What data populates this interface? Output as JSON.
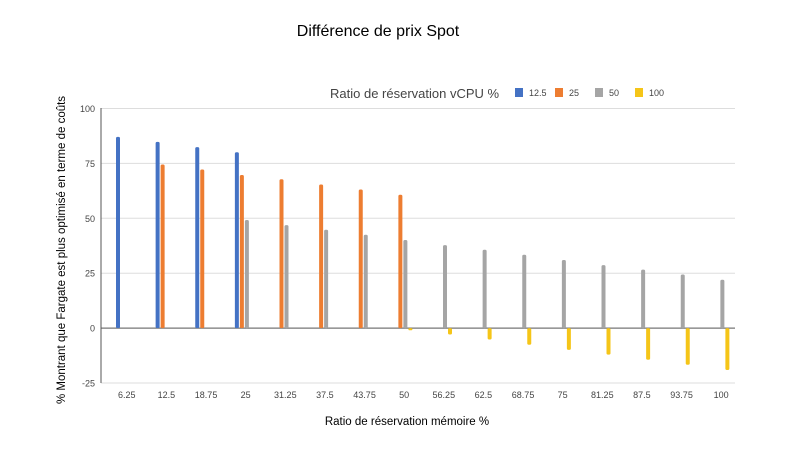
{
  "chart_data": {
    "type": "bar",
    "title": "Différence de prix Spot",
    "xlabel": "Ratio de réservation mémoire %",
    "ylabel": "% Montrant que Fargate est plus optimisé en terme de coûts",
    "legend_title": "Ratio de réservation vCPU %",
    "legend_position": "top-right",
    "ylim": [
      -25,
      100
    ],
    "yticks": [
      "-25",
      "0",
      "25",
      "50",
      "75",
      "100"
    ],
    "grid": true,
    "categories": [
      "6.25",
      "12.5",
      "18.75",
      "25",
      "31.25",
      "37.5",
      "43.75",
      "50",
      "56.25",
      "62.5",
      "68.75",
      "75",
      "81.25",
      "87.5",
      "93.75",
      "100"
    ],
    "series": [
      {
        "name": "12.5",
        "color": "#4472c4",
        "values": [
          87.1,
          84.8,
          82.4,
          80.1,
          null,
          null,
          null,
          null,
          null,
          null,
          null,
          null,
          null,
          null,
          null,
          null
        ]
      },
      {
        "name": "25",
        "color": "#ed7d31",
        "values": [
          null,
          74.5,
          72.2,
          69.7,
          67.8,
          65.4,
          63.1,
          60.7,
          null,
          null,
          null,
          null,
          null,
          null,
          null,
          null
        ]
      },
      {
        "name": "50",
        "color": "#a5a5a5",
        "values": [
          null,
          null,
          null,
          49.2,
          46.9,
          44.8,
          42.5,
          40.1,
          37.8,
          35.7,
          33.4,
          31.0,
          28.7,
          26.6,
          24.4,
          22.0
        ]
      },
      {
        "name": "100",
        "color": "#f5c518",
        "values": [
          null,
          null,
          null,
          null,
          null,
          null,
          null,
          -1.0,
          -2.9,
          -5.2,
          -7.6,
          -9.9,
          -12.1,
          -14.4,
          -16.7,
          -19.1
        ]
      }
    ]
  }
}
